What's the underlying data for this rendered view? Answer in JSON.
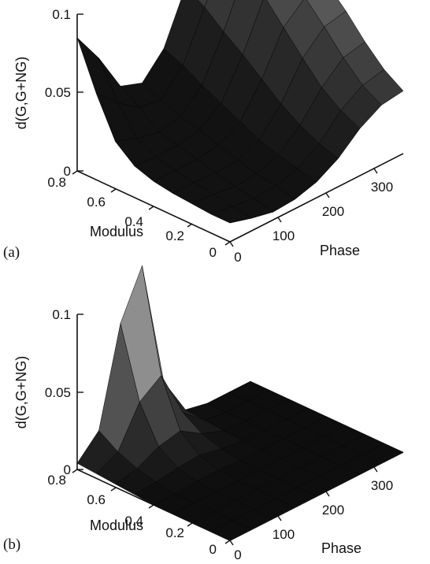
{
  "chart_data": [
    {
      "type": "surface",
      "panel_label": "(a)",
      "zlabel": "d(G,G+NG)",
      "xlabel": "Phase",
      "ylabel": "Modulus",
      "xlim": [
        0,
        360
      ],
      "ylim": [
        0,
        0.8
      ],
      "zlim": [
        0,
        0.1
      ],
      "xticks": [
        "0",
        "100",
        "200",
        "300"
      ],
      "yticks": [
        "0",
        "0.2",
        "0.4",
        "0.6",
        "0.8"
      ],
      "zticks": [
        "0",
        "0.05",
        "0.1"
      ],
      "x": [
        0,
        45,
        90,
        135,
        180,
        225,
        270,
        315,
        360
      ],
      "y": [
        0,
        0.1,
        0.2,
        0.3,
        0.4,
        0.5,
        0.6,
        0.7,
        0.8
      ],
      "z": [
        [
          0.012,
          0.008,
          0.005,
          0.006,
          0.01,
          0.018,
          0.03,
          0.038,
          0.04
        ],
        [
          0.012,
          0.01,
          0.008,
          0.009,
          0.013,
          0.022,
          0.036,
          0.045,
          0.048
        ],
        [
          0.013,
          0.012,
          0.01,
          0.011,
          0.016,
          0.028,
          0.045,
          0.057,
          0.06
        ],
        [
          0.014,
          0.014,
          0.013,
          0.014,
          0.02,
          0.036,
          0.058,
          0.071,
          0.074
        ],
        [
          0.016,
          0.016,
          0.016,
          0.018,
          0.026,
          0.046,
          0.072,
          0.084,
          0.086
        ],
        [
          0.02,
          0.019,
          0.019,
          0.022,
          0.032,
          0.056,
          0.086,
          0.095,
          0.095
        ],
        [
          0.03,
          0.025,
          0.022,
          0.025,
          0.038,
          0.065,
          0.097,
          0.104,
          0.1
        ],
        [
          0.055,
          0.042,
          0.032,
          0.03,
          0.045,
          0.075,
          0.103,
          0.107,
          0.103
        ],
        [
          0.085,
          0.065,
          0.04,
          0.035,
          0.05,
          0.082,
          0.108,
          0.11,
          0.105
        ]
      ]
    },
    {
      "type": "surface",
      "panel_label": "(b)",
      "zlabel": "d(G,G+NG)",
      "xlabel": "Phase",
      "ylabel": "Modulus",
      "xlim": [
        0,
        360
      ],
      "ylim": [
        0,
        0.8
      ],
      "zlim": [
        0,
        0.1
      ],
      "xticks": [
        "0",
        "100",
        "200",
        "300"
      ],
      "yticks": [
        "0",
        "0.2",
        "0.4",
        "0.6",
        "0.8"
      ],
      "zticks": [
        "0",
        "0.05",
        "0.1"
      ],
      "x": [
        0,
        45,
        90,
        135,
        180,
        225,
        270,
        315,
        360
      ],
      "y": [
        0,
        0.1,
        0.2,
        0.3,
        0.4,
        0.5,
        0.6,
        0.7,
        0.8
      ],
      "z": [
        [
          0.0,
          0.0,
          0.0,
          0.0,
          0.0,
          0.0,
          0.0,
          0.0,
          0.0
        ],
        [
          0.0,
          0.0,
          0.0,
          0.0,
          0.0,
          0.0,
          0.0,
          0.0,
          0.0
        ],
        [
          0.0,
          0.0,
          0.0,
          0.0,
          0.0,
          0.0,
          0.0,
          0.0,
          0.0
        ],
        [
          0.0,
          0.0,
          0.0,
          0.0,
          0.0,
          0.0,
          0.0,
          0.0,
          0.0
        ],
        [
          0.0,
          0.0,
          0.001,
          0.001,
          0.0,
          0.0,
          0.0,
          0.0,
          0.0
        ],
        [
          0.001,
          0.002,
          0.004,
          0.005,
          0.002,
          0.0,
          0.0,
          0.0,
          0.0
        ],
        [
          0.002,
          0.005,
          0.012,
          0.015,
          0.006,
          0.001,
          0.0,
          0.0,
          0.0
        ],
        [
          0.003,
          0.01,
          0.035,
          0.045,
          0.014,
          0.002,
          0.0,
          0.0,
          0.0
        ],
        [
          0.004,
          0.018,
          0.08,
          0.11,
          0.028,
          0.003,
          0.0,
          0.0,
          0.0
        ]
      ]
    }
  ]
}
